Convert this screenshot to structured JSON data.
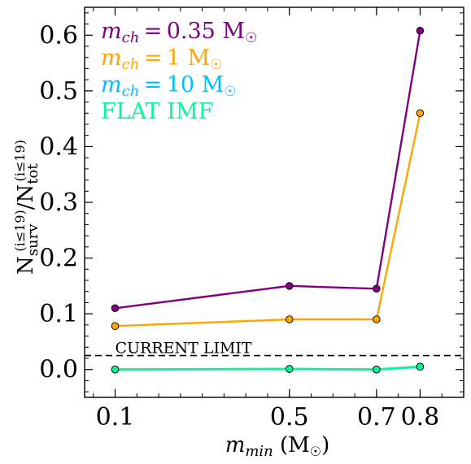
{
  "chart_data": {
    "type": "line",
    "xlabel": "m_min (M☉)",
    "ylabel": "N_surv^(i≤19)/N_tot^(i≤19)",
    "x": [
      0.1,
      0.5,
      0.7,
      0.8
    ],
    "xticks": [
      "0.1",
      "0.5",
      "0.7",
      "0.8"
    ],
    "yticks": [
      "0.0",
      "0.1",
      "0.2",
      "0.3",
      "0.4",
      "0.5",
      "0.6"
    ],
    "xlim": [
      0.03,
      0.9
    ],
    "ylim": [
      -0.05,
      0.65
    ],
    "grid": false,
    "legend_placement": "top-left",
    "series": [
      {
        "name": "m_ch = 0.35 M☉",
        "color": "#800080",
        "values": [
          0.11,
          0.15,
          0.145,
          0.608
        ]
      },
      {
        "name": "m_ch = 1 M☉",
        "color": "#FFA500",
        "values": [
          0.078,
          0.09,
          0.09,
          0.46
        ]
      },
      {
        "name": "m_ch = 10 M☉",
        "color": "#00BFFF",
        "values": [
          0.0,
          0.001,
          0.0,
          0.005
        ]
      },
      {
        "name": "FLAT IMF",
        "color": "#00FA9A",
        "values": [
          0.0,
          0.001,
          0.0,
          0.005
        ]
      }
    ],
    "reference_line": {
      "label": "CURRENT LIMIT",
      "y": 0.025,
      "style": "dashed"
    }
  }
}
